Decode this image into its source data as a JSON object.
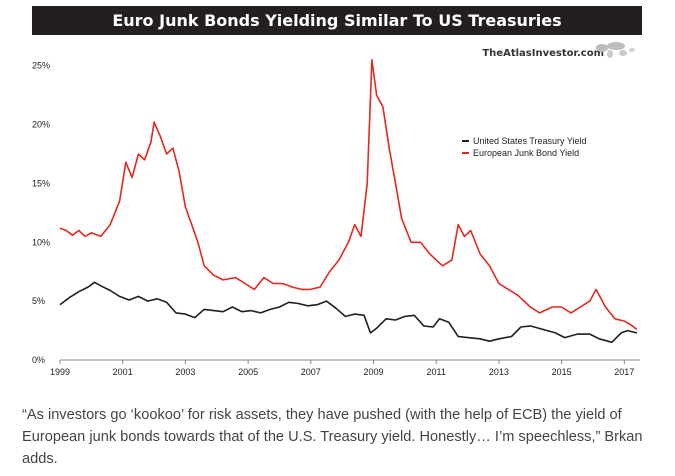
{
  "chart_data": {
    "type": "line",
    "title": "Euro Junk Bonds Yielding Similar To US Treasuries",
    "brand": "TheAtlasInvestor.com",
    "xlabel": "",
    "ylabel": "",
    "x_ticks": [
      "1999",
      "2001",
      "2003",
      "2005",
      "2007",
      "2009",
      "2011",
      "2013",
      "2015",
      "2017"
    ],
    "y_ticks": [
      "0%",
      "5%",
      "10%",
      "15%",
      "20%",
      "25%"
    ],
    "xlim": [
      1999,
      2017.5
    ],
    "ylim": [
      0,
      26.5
    ],
    "grid": false,
    "legend_position": "right",
    "series": [
      {
        "name": "United States Treasury Yield",
        "color": "#231f20",
        "points": [
          [
            1999,
            4.7
          ],
          [
            1999.3,
            5.3
          ],
          [
            1999.6,
            5.8
          ],
          [
            1999.9,
            6.2
          ],
          [
            2000.1,
            6.6
          ],
          [
            2000.3,
            6.3
          ],
          [
            2000.6,
            5.9
          ],
          [
            2000.9,
            5.4
          ],
          [
            2001.2,
            5.1
          ],
          [
            2001.5,
            5.4
          ],
          [
            2001.8,
            5.0
          ],
          [
            2002.1,
            5.2
          ],
          [
            2002.4,
            4.9
          ],
          [
            2002.7,
            4.0
          ],
          [
            2003.0,
            3.9
          ],
          [
            2003.3,
            3.6
          ],
          [
            2003.6,
            4.3
          ],
          [
            2003.9,
            4.2
          ],
          [
            2004.2,
            4.1
          ],
          [
            2004.5,
            4.5
          ],
          [
            2004.8,
            4.1
          ],
          [
            2005.1,
            4.2
          ],
          [
            2005.4,
            4.0
          ],
          [
            2005.7,
            4.3
          ],
          [
            2006.0,
            4.5
          ],
          [
            2006.3,
            4.9
          ],
          [
            2006.6,
            4.8
          ],
          [
            2006.9,
            4.6
          ],
          [
            2007.2,
            4.7
          ],
          [
            2007.5,
            5.0
          ],
          [
            2007.8,
            4.4
          ],
          [
            2008.1,
            3.7
          ],
          [
            2008.4,
            3.9
          ],
          [
            2008.7,
            3.8
          ],
          [
            2008.9,
            2.3
          ],
          [
            2009.1,
            2.7
          ],
          [
            2009.4,
            3.5
          ],
          [
            2009.7,
            3.4
          ],
          [
            2010.0,
            3.7
          ],
          [
            2010.3,
            3.8
          ],
          [
            2010.6,
            2.9
          ],
          [
            2010.9,
            2.8
          ],
          [
            2011.1,
            3.5
          ],
          [
            2011.4,
            3.2
          ],
          [
            2011.7,
            2.0
          ],
          [
            2012.0,
            1.9
          ],
          [
            2012.4,
            1.8
          ],
          [
            2012.7,
            1.6
          ],
          [
            2013.0,
            1.8
          ],
          [
            2013.4,
            2.0
          ],
          [
            2013.7,
            2.8
          ],
          [
            2014.0,
            2.9
          ],
          [
            2014.4,
            2.6
          ],
          [
            2014.8,
            2.3
          ],
          [
            2015.1,
            1.9
          ],
          [
            2015.5,
            2.2
          ],
          [
            2015.9,
            2.2
          ],
          [
            2016.2,
            1.8
          ],
          [
            2016.6,
            1.5
          ],
          [
            2016.9,
            2.3
          ],
          [
            2017.1,
            2.5
          ],
          [
            2017.4,
            2.3
          ]
        ]
      },
      {
        "name": "European Junk Bond Yield",
        "color": "#e5281e",
        "points": [
          [
            1999,
            11.2
          ],
          [
            1999.2,
            11.0
          ],
          [
            1999.4,
            10.6
          ],
          [
            1999.6,
            11.0
          ],
          [
            1999.8,
            10.5
          ],
          [
            2000.0,
            10.8
          ],
          [
            2000.3,
            10.5
          ],
          [
            2000.6,
            11.5
          ],
          [
            2000.9,
            13.5
          ],
          [
            2001.1,
            16.8
          ],
          [
            2001.3,
            15.5
          ],
          [
            2001.5,
            17.5
          ],
          [
            2001.7,
            17.0
          ],
          [
            2001.9,
            18.5
          ],
          [
            2002.0,
            20.2
          ],
          [
            2002.2,
            19.0
          ],
          [
            2002.4,
            17.5
          ],
          [
            2002.6,
            18.0
          ],
          [
            2002.8,
            16.0
          ],
          [
            2003.0,
            13.0
          ],
          [
            2003.2,
            11.5
          ],
          [
            2003.4,
            10.0
          ],
          [
            2003.6,
            8.0
          ],
          [
            2003.9,
            7.2
          ],
          [
            2004.2,
            6.8
          ],
          [
            2004.6,
            7.0
          ],
          [
            2004.9,
            6.5
          ],
          [
            2005.2,
            6.0
          ],
          [
            2005.5,
            7.0
          ],
          [
            2005.8,
            6.5
          ],
          [
            2006.1,
            6.5
          ],
          [
            2006.4,
            6.2
          ],
          [
            2006.7,
            6.0
          ],
          [
            2007.0,
            6.0
          ],
          [
            2007.3,
            6.2
          ],
          [
            2007.6,
            7.5
          ],
          [
            2007.9,
            8.5
          ],
          [
            2008.2,
            10.0
          ],
          [
            2008.4,
            11.5
          ],
          [
            2008.6,
            10.5
          ],
          [
            2008.8,
            15.0
          ],
          [
            2008.95,
            25.5
          ],
          [
            2009.1,
            22.5
          ],
          [
            2009.3,
            21.5
          ],
          [
            2009.5,
            18.0
          ],
          [
            2009.7,
            15.0
          ],
          [
            2009.9,
            12.0
          ],
          [
            2010.2,
            10.0
          ],
          [
            2010.5,
            10.0
          ],
          [
            2010.8,
            9.0
          ],
          [
            2011.0,
            8.5
          ],
          [
            2011.2,
            8.0
          ],
          [
            2011.5,
            8.5
          ],
          [
            2011.7,
            11.5
          ],
          [
            2011.9,
            10.5
          ],
          [
            2012.1,
            11.0
          ],
          [
            2012.4,
            9.0
          ],
          [
            2012.7,
            8.0
          ],
          [
            2013.0,
            6.5
          ],
          [
            2013.3,
            6.0
          ],
          [
            2013.6,
            5.5
          ],
          [
            2014.0,
            4.5
          ],
          [
            2014.3,
            4.0
          ],
          [
            2014.7,
            4.5
          ],
          [
            2015.0,
            4.5
          ],
          [
            2015.3,
            4.0
          ],
          [
            2015.6,
            4.5
          ],
          [
            2015.9,
            5.0
          ],
          [
            2016.1,
            6.0
          ],
          [
            2016.4,
            4.5
          ],
          [
            2016.7,
            3.5
          ],
          [
            2017.0,
            3.3
          ],
          [
            2017.2,
            3.0
          ],
          [
            2017.4,
            2.6
          ]
        ]
      }
    ]
  },
  "quote": "“As investors go ‘kookoo’ for risk assets, they have pushed (with the help of ECB) the yield of European junk bonds towards that of the U.S. Treasury yield. Honestly… I’m speechless,” Brkan adds.",
  "colors": {
    "title_bg": "#231f20",
    "us_line": "#231f20",
    "euro_line": "#e5281e"
  },
  "icons": {
    "brand_logo": "world-map-icon"
  }
}
